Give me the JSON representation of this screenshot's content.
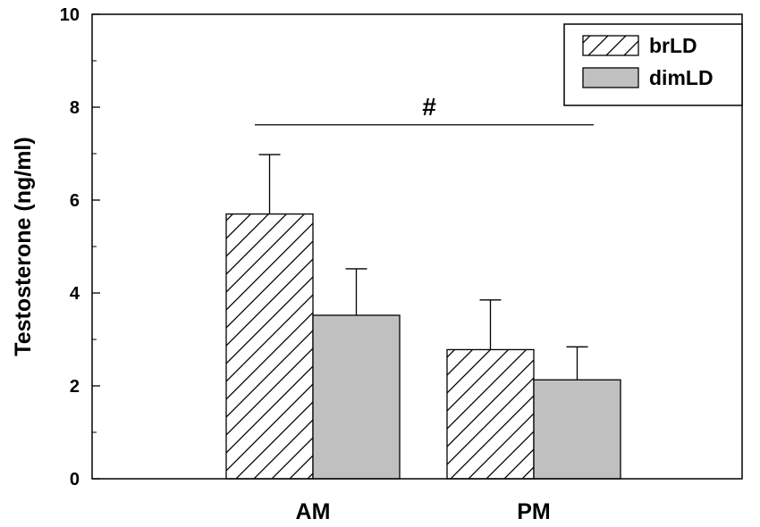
{
  "chart_data": {
    "type": "bar",
    "categories": [
      "AM",
      "PM"
    ],
    "series": [
      {
        "name": "brLD",
        "values": [
          5.7,
          2.78
        ],
        "errors": [
          1.28,
          1.07
        ],
        "fill": "hatch"
      },
      {
        "name": "dimLD",
        "values": [
          3.52,
          2.13
        ],
        "errors": [
          1.0,
          0.71
        ],
        "fill": "#c0c0c0"
      }
    ],
    "ylabel": "Testosterone (ng/ml)",
    "xlabel": "",
    "ylim": [
      0,
      10
    ],
    "yticks": [
      "0",
      "2",
      "4",
      "6",
      "8",
      "10"
    ],
    "legend_position": "top-right",
    "annotation": {
      "text": "#",
      "spans": [
        "AM",
        "PM"
      ],
      "y": 7.62
    }
  }
}
